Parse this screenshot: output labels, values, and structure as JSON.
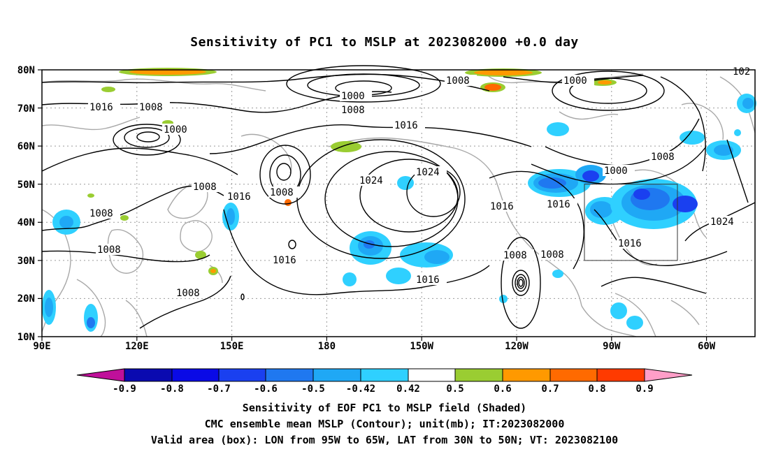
{
  "title": "Sensitivity of PC1 to MSLP at 2023082000 +0.0 day",
  "map": {
    "lat_labels": [
      "80N",
      "70N",
      "60N",
      "50N",
      "40N",
      "30N",
      "20N",
      "10N"
    ],
    "lon_labels": [
      "90E",
      "120E",
      "150E",
      "180",
      "150W",
      "120W",
      "90W",
      "60W"
    ],
    "contour_labels": [
      {
        "text": "1016"
      },
      {
        "text": "1008"
      },
      {
        "text": "1000"
      },
      {
        "text": "1008"
      },
      {
        "text": "1008"
      },
      {
        "text": "1008"
      },
      {
        "text": "1008"
      },
      {
        "text": "1016"
      },
      {
        "text": "1008"
      },
      {
        "text": "1016"
      },
      {
        "text": "1000"
      },
      {
        "text": "1008"
      },
      {
        "text": "1016"
      },
      {
        "text": "1024"
      },
      {
        "text": "1024"
      },
      {
        "text": "1016"
      },
      {
        "text": "1008"
      },
      {
        "text": "1016"
      },
      {
        "text": "1008"
      },
      {
        "text": "1008"
      },
      {
        "text": "1000"
      },
      {
        "text": "1008"
      },
      {
        "text": "1016"
      },
      {
        "text": "1024"
      },
      {
        "text": "102"
      }
    ],
    "valid_box": {
      "lon_from": "95W",
      "lon_to": "65W",
      "lat_from": "30N",
      "lat_to": "50N"
    }
  },
  "colorbar": {
    "labels": [
      "-0.9",
      "-0.8",
      "-0.7",
      "-0.6",
      "-0.5",
      "-0.42",
      "0.42",
      "0.5",
      "0.6",
      "0.7",
      "0.8",
      "0.9"
    ],
    "colors": [
      "#c0109a",
      "#0a0ab0",
      "#0a0ae6",
      "#1a40f0",
      "#1f78f0",
      "#1fa8f5",
      "#2fd0ff",
      "#ffffff",
      "#9acd32",
      "#ff9900",
      "#ff6a00",
      "#ff3a00",
      "#ff0000",
      "#ff9ec8"
    ]
  },
  "captions": [
    "Sensitivity of EOF PC1 to MSLP field (Shaded)",
    "CMC ensemble mean MSLP (Contour); unit(mb); IT:2023082000",
    "Valid area (box): LON from 95W to 65W, LAT from 30N to 50N; VT: 2023082100"
  ]
}
